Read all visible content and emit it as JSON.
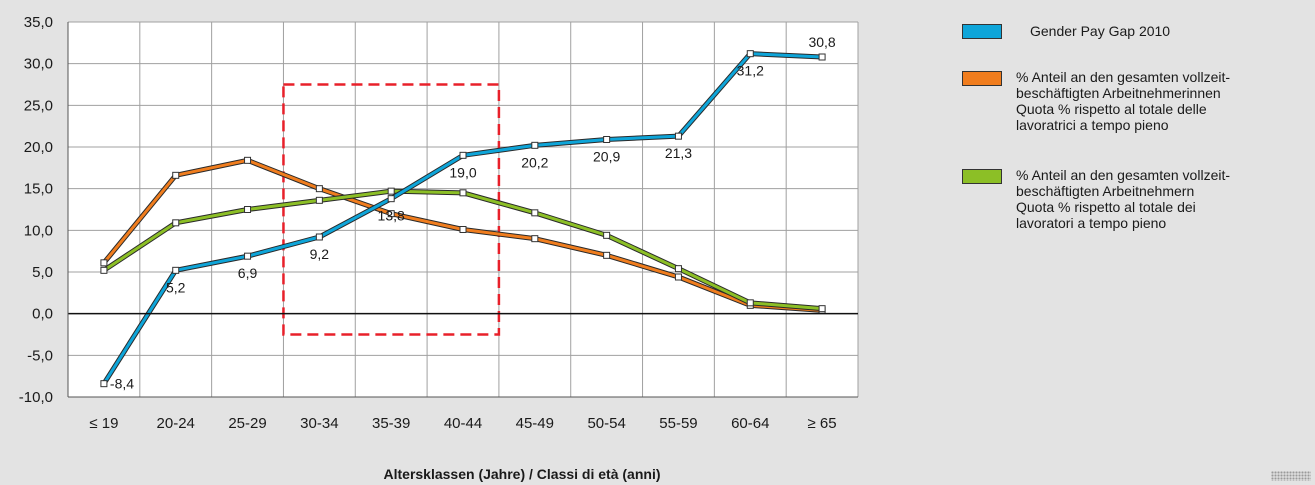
{
  "chart_data": {
    "type": "line",
    "categories": [
      "≤ 19",
      "20-24",
      "25-29",
      "30-34",
      "35-39",
      "40-44",
      "45-49",
      "50-54",
      "55-59",
      "60-64",
      "≥ 65"
    ],
    "xlabel": "Altersklassen (Jahre) / Classi di età (anni)",
    "ylabel": "",
    "ylim": [
      -10,
      35
    ],
    "yticks": [
      "35,0",
      "30,0",
      "25,0",
      "20,0",
      "15,0",
      "10,0",
      "5,0",
      "0,0",
      "-5,0",
      "-10,0"
    ],
    "grid": true,
    "legend_position": "right",
    "highlight_range": {
      "from": "30-34",
      "to": "40-44",
      "y_from": -2.5,
      "y_to": 27.5,
      "color": "#e8202a"
    },
    "series": [
      {
        "name": "Gender Pay Gap 2010",
        "color": "#0ea5d9",
        "values": [
          -8.4,
          5.2,
          6.9,
          9.2,
          13.8,
          19.0,
          20.2,
          20.9,
          21.3,
          31.2,
          30.8
        ],
        "labels": [
          "-8,4",
          "5,2",
          "6,9",
          "9,2",
          "13,8",
          "19,0",
          "20,2",
          "20,9",
          "21,3",
          "31,2",
          "30,8"
        ],
        "label_pos": [
          "right",
          "below",
          "below",
          "below",
          "below",
          "below",
          "below",
          "below",
          "below",
          "below",
          "above"
        ]
      },
      {
        "name": "% Anteil an den gesamten vollzeit-beschäftigten Arbeitnehmerinnen Quota % rispetto al totale delle lavoratrici a tempo pieno",
        "legend_lines": [
          "% Anteil an den gesamten vollzeit-",
          "beschäftigten Arbeitnehmerinnen",
          "Quota % rispetto al totale delle",
          "lavoratrici a tempo pieno"
        ],
        "color": "#f07d1e",
        "values": [
          6.1,
          16.6,
          18.4,
          15.0,
          12.0,
          10.1,
          9.0,
          7.0,
          4.4,
          1.0,
          0.4
        ]
      },
      {
        "name": "% Anteil an den gesamten vollzeit-beschäftigten Arbeitnehmern Quota % rispetto al totale dei lavoratori a tempo pieno",
        "legend_lines": [
          "% Anteil an den gesamten vollzeit-",
          "beschäftigten Arbeitnehmern",
          "Quota % rispetto al totale dei",
          "lavoratori a tempo pieno"
        ],
        "color": "#8cbf26",
        "values": [
          5.2,
          10.9,
          12.5,
          13.6,
          14.7,
          14.5,
          12.1,
          9.4,
          5.4,
          1.3,
          0.6
        ]
      }
    ]
  }
}
